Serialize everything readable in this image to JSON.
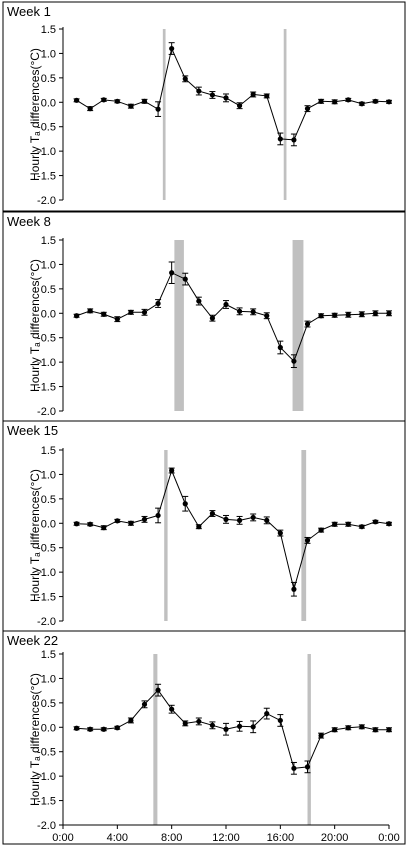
{
  "chart_data": [
    {
      "type": "line",
      "title": "Week 1",
      "xlabel": "",
      "ylabel": "Hourly  Tₐ differences(°C)",
      "ylim": [
        -2.0,
        1.5
      ],
      "yticks": [
        "1.5",
        "1.0",
        "0.5",
        "0.0",
        "-0.5",
        "-1.0",
        "-1.5",
        "-2.0"
      ],
      "x_hours": [
        1,
        2,
        3,
        4,
        5,
        6,
        7,
        8,
        9,
        10,
        11,
        12,
        13,
        14,
        15,
        16,
        17,
        18,
        19,
        20,
        21,
        22,
        23,
        24
      ],
      "values": [
        0.04,
        -0.13,
        0.05,
        0.02,
        -0.08,
        0.02,
        -0.14,
        1.1,
        0.48,
        0.23,
        0.15,
        0.09,
        -0.07,
        0.16,
        0.13,
        -0.75,
        -0.77,
        -0.13,
        0.02,
        0.01,
        0.05,
        -0.03,
        0.02,
        0.01
      ],
      "errors": [
        0.03,
        0.04,
        0.03,
        0.03,
        0.04,
        0.04,
        0.15,
        0.12,
        0.06,
        0.08,
        0.07,
        0.08,
        0.06,
        0.05,
        0.04,
        0.12,
        0.12,
        0.06,
        0.04,
        0.04,
        0.03,
        0.03,
        0.03,
        0.03
      ],
      "shaded_hours": [
        [
          7.35,
          7.55
        ],
        [
          16.25,
          16.45
        ]
      ]
    },
    {
      "type": "line",
      "title": "Week 8",
      "xlabel": "",
      "ylabel": "Hourly  Tₐ differences(°C)",
      "ylim": [
        -2.0,
        1.5
      ],
      "yticks": [
        "1.5",
        "1.0",
        "0.5",
        "0.0",
        "-0.5",
        "-1.0",
        "-1.5",
        "-2.0"
      ],
      "x_hours": [
        1,
        2,
        3,
        4,
        5,
        6,
        7,
        8,
        9,
        10,
        11,
        12,
        13,
        14,
        15,
        16,
        17,
        18,
        19,
        20,
        21,
        22,
        23,
        24
      ],
      "values": [
        -0.05,
        0.05,
        -0.02,
        -0.12,
        0.02,
        0.02,
        0.2,
        0.83,
        0.7,
        0.25,
        -0.1,
        0.18,
        0.04,
        0.03,
        -0.05,
        -0.7,
        -0.98,
        -0.22,
        -0.05,
        -0.04,
        -0.03,
        -0.02,
        0.0,
        0.0
      ],
      "errors": [
        0.03,
        0.04,
        0.04,
        0.05,
        0.04,
        0.06,
        0.08,
        0.22,
        0.12,
        0.08,
        0.06,
        0.08,
        0.07,
        0.06,
        0.06,
        0.13,
        0.13,
        0.06,
        0.04,
        0.04,
        0.05,
        0.05,
        0.05,
        0.05
      ],
      "shaded_hours": [
        [
          8.2,
          8.9
        ],
        [
          16.9,
          17.7
        ]
      ]
    },
    {
      "type": "line",
      "title": "Week 15",
      "xlabel": "",
      "ylabel": "Hourly  Tₐ differences(°C)",
      "ylim": [
        -2.0,
        1.5
      ],
      "yticks": [
        "1.5",
        "1.0",
        "0.5",
        "0.0",
        "-0.5",
        "-1.0",
        "-1.5",
        "-2.0"
      ],
      "x_hours": [
        1,
        2,
        3,
        4,
        5,
        6,
        7,
        8,
        9,
        10,
        11,
        12,
        13,
        14,
        15,
        16,
        17,
        18,
        19,
        20,
        21,
        22,
        23,
        24
      ],
      "values": [
        -0.01,
        -0.02,
        -0.09,
        0.05,
        0.0,
        0.08,
        0.16,
        1.08,
        0.4,
        -0.07,
        0.2,
        0.08,
        0.06,
        0.12,
        0.06,
        -0.2,
        -1.35,
        -0.35,
        -0.14,
        -0.02,
        -0.02,
        -0.07,
        0.03,
        -0.01
      ],
      "errors": [
        0.03,
        0.03,
        0.04,
        0.03,
        0.04,
        0.06,
        0.15,
        0.05,
        0.15,
        0.04,
        0.06,
        0.08,
        0.08,
        0.07,
        0.07,
        0.06,
        0.14,
        0.06,
        0.04,
        0.04,
        0.04,
        0.03,
        0.03,
        0.03
      ],
      "shaded_hours": [
        [
          7.45,
          7.7
        ],
        [
          17.55,
          17.9
        ]
      ]
    },
    {
      "type": "line",
      "title": "Week 22",
      "xlabel": "",
      "ylabel": "Hourly  Tₐ differences(°C)",
      "ylim": [
        -2.0,
        1.5
      ],
      "yticks": [
        "1.5",
        "1.0",
        "0.5",
        "0.0",
        "-0.5",
        "-1.0",
        "-1.5",
        "-2.0"
      ],
      "xticks": [
        "0:00",
        "4:00",
        "8:00",
        "12:00",
        "16:00",
        "20:00",
        "0:00"
      ],
      "x_hours": [
        1,
        2,
        3,
        4,
        5,
        6,
        7,
        8,
        9,
        10,
        11,
        12,
        13,
        14,
        15,
        16,
        17,
        18,
        19,
        20,
        21,
        22,
        23,
        24
      ],
      "values": [
        -0.02,
        -0.04,
        -0.04,
        -0.01,
        0.14,
        0.47,
        0.76,
        0.37,
        0.08,
        0.12,
        0.04,
        -0.04,
        0.02,
        0.01,
        0.28,
        0.14,
        -0.84,
        -0.81,
        -0.17,
        -0.05,
        -0.01,
        0.01,
        -0.05,
        -0.05
      ],
      "errors": [
        0.03,
        0.03,
        0.03,
        0.03,
        0.05,
        0.07,
        0.12,
        0.08,
        0.05,
        0.07,
        0.07,
        0.12,
        0.1,
        0.12,
        0.11,
        0.12,
        0.12,
        0.12,
        0.05,
        0.04,
        0.04,
        0.04,
        0.04,
        0.04
      ],
      "shaded_hours": [
        [
          6.65,
          6.95
        ],
        [
          18.0,
          18.25
        ]
      ]
    }
  ]
}
